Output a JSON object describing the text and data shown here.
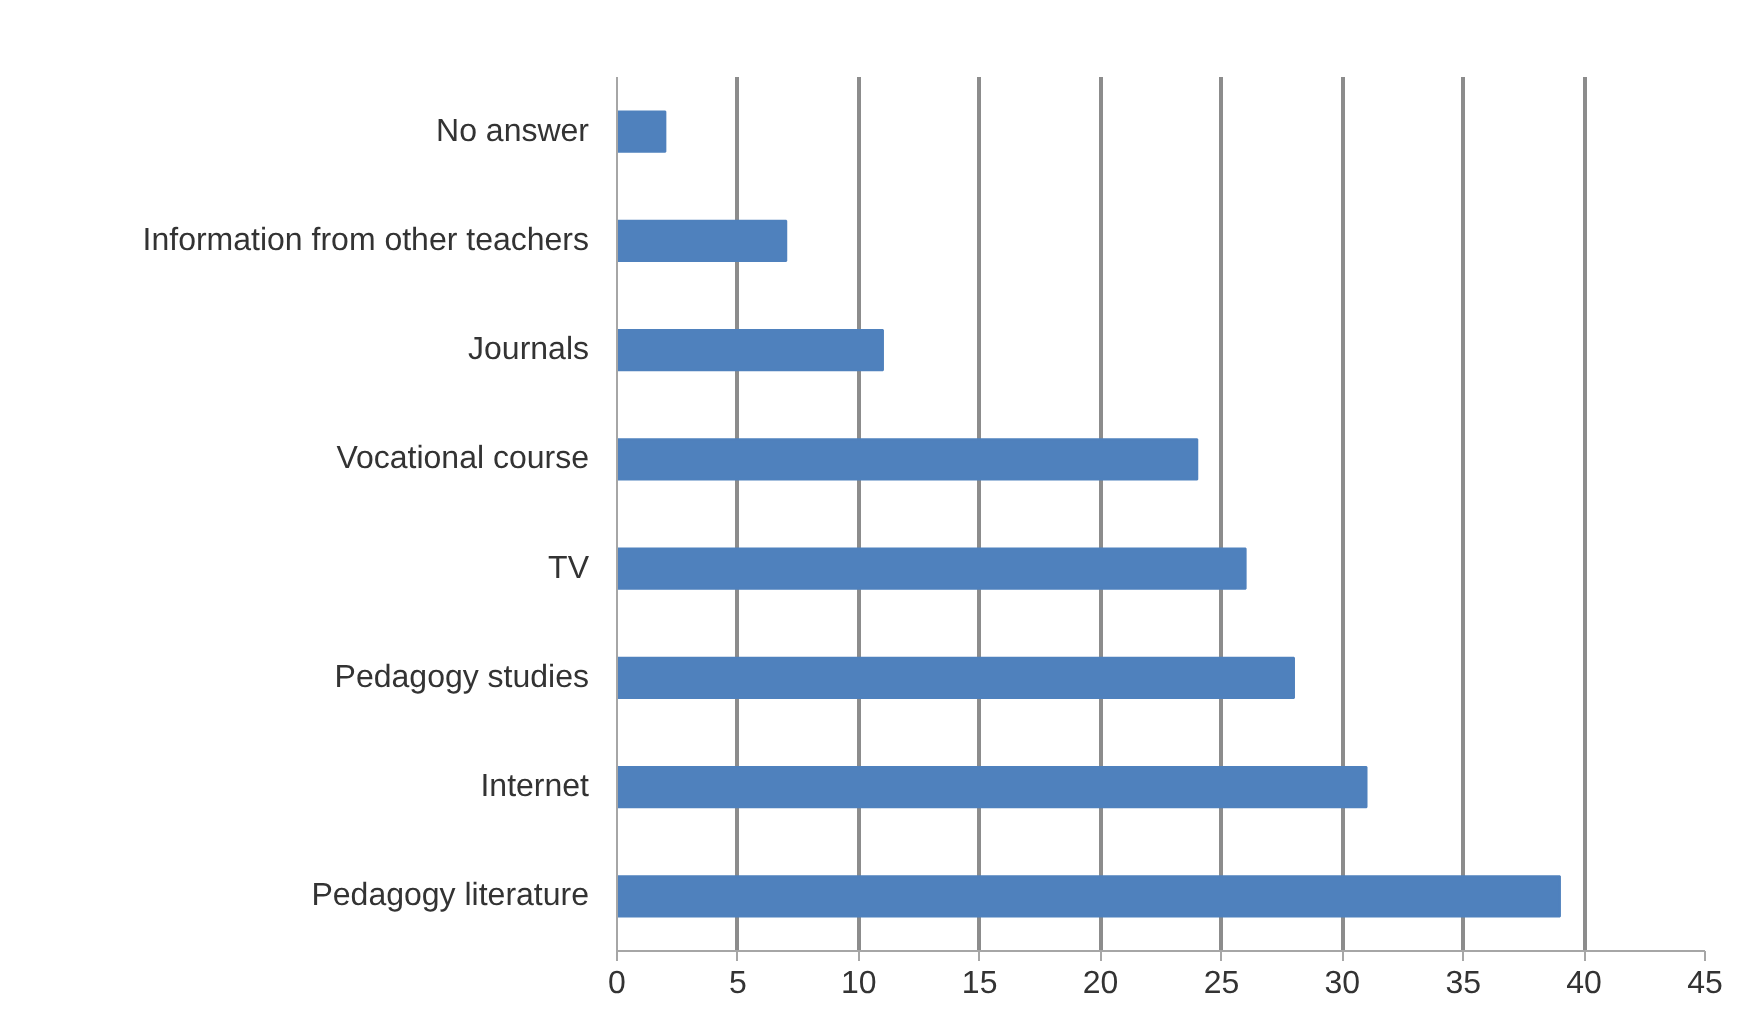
{
  "chart_data": {
    "type": "bar",
    "orientation": "horizontal",
    "categories": [
      "No answer",
      "Information from other teachers",
      "Journals",
      "Vocational course",
      "TV",
      "Pedagogy studies",
      "Internet",
      "Pedagogy literature"
    ],
    "values": [
      2,
      7,
      11,
      24,
      26,
      28,
      31,
      39
    ],
    "color": "#4f81bd",
    "xlim": [
      0,
      45
    ],
    "xticks": [
      0,
      5,
      10,
      15,
      20,
      25,
      30,
      35,
      40,
      45
    ],
    "grid": "x"
  }
}
